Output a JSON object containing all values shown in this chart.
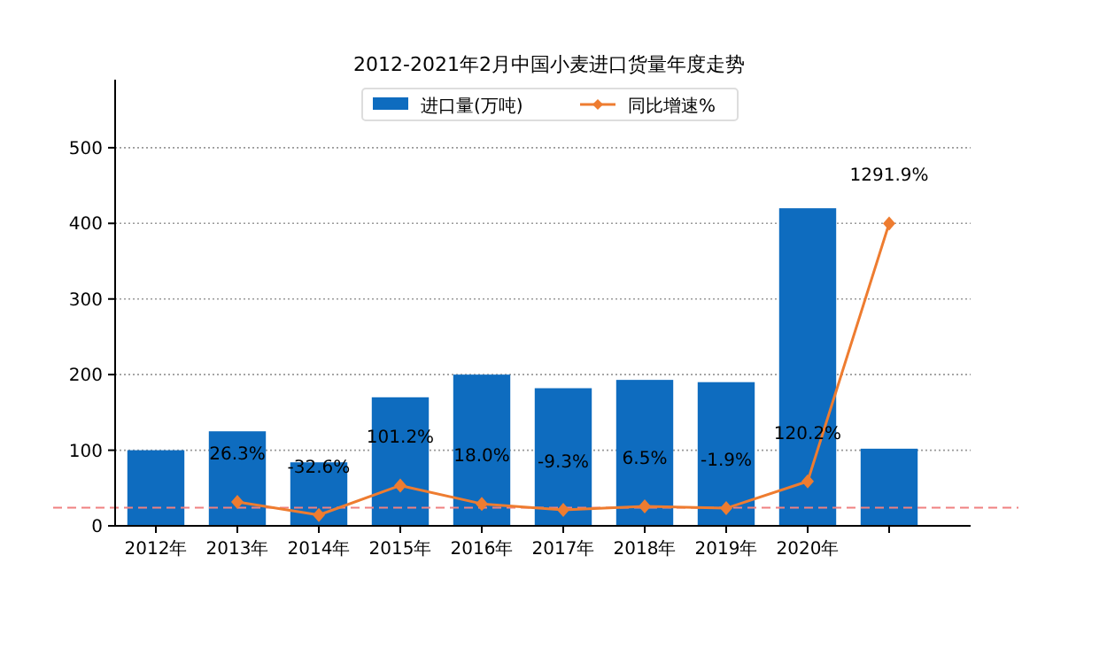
{
  "chart_data": {
    "type": "bar",
    "title": "2012-2021年2月中国小麦进口货量年度走势",
    "categories": [
      "2012年",
      "2013年",
      "2014年",
      "2015年",
      "2016年",
      "2017年",
      "2018年",
      "2019年",
      "2020年",
      null
    ],
    "series": [
      {
        "name": "进口量(万吨)",
        "color": "#0e6cbf",
        "values": [
          100,
          125,
          84,
          170,
          200,
          182,
          193,
          190,
          420,
          102
        ]
      },
      {
        "name": "同比增速%",
        "type": "line",
        "axis": "y2",
        "color": "#ee7c30",
        "marker": "diamond",
        "values": [
          null,
          26.3,
          -32.6,
          101.2,
          18.0,
          -9.3,
          6.5,
          -1.9,
          120.2,
          1291.9
        ],
        "value_labels": [
          null,
          "26.3%",
          "-32.6%",
          "101.2%",
          "18.0%",
          "-9.3%",
          "6.5%",
          "-1.9%",
          "120.2%",
          "1291.9%"
        ]
      }
    ],
    "ylim": [
      0,
      590
    ],
    "yticks": [
      0,
      100,
      200,
      300,
      400,
      500
    ],
    "y2lim": [
      -82,
      1945
    ],
    "ref_lines": [
      {
        "axis": "y2",
        "value": 0,
        "color": "#f08080",
        "line_style": "dashed"
      }
    ],
    "grid": "y",
    "legend": "top"
  }
}
